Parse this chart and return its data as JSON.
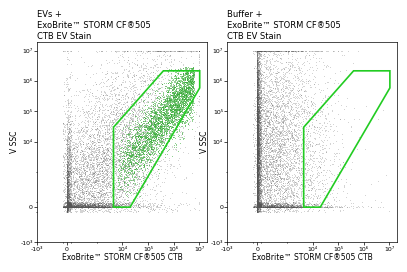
{
  "left_title": "EVs +\nExoBrite™ STORM CF®505\nCTB EV Stain",
  "right_title": "Buffer +\nExoBrite™ STORM CF®505\nCTB EV Stain",
  "xlabel": "ExoBrite™ STORM CF®505 CTB",
  "ylabel": "V SSC",
  "scatter_color_dark": "#555555",
  "scatter_color_green": "#33aa33",
  "gate_color": "#22cc22",
  "gate_linewidth": 1.2,
  "background_color": "#ffffff",
  "linthresh": 100,
  "linscale": 0.15,
  "xlim": [
    -200,
    20000000.0
  ],
  "ylim": [
    -200,
    20000000.0
  ],
  "xtick_vals": [
    -1000,
    0,
    10000,
    100000,
    1000000,
    10000000
  ],
  "xtick_labels": [
    "-10³",
    "0",
    "10⁴",
    "10⁵",
    "10⁶",
    "10⁷"
  ],
  "ytick_vals": [
    -1000,
    0,
    10000,
    100000,
    1000000,
    10000000
  ],
  "ytick_labels": [
    "-10³",
    "0",
    "10⁴",
    "10⁵",
    "10⁶",
    "10⁷"
  ],
  "title_fontsize": 6.0,
  "label_fontsize": 5.5,
  "tick_fontsize": 4.5
}
